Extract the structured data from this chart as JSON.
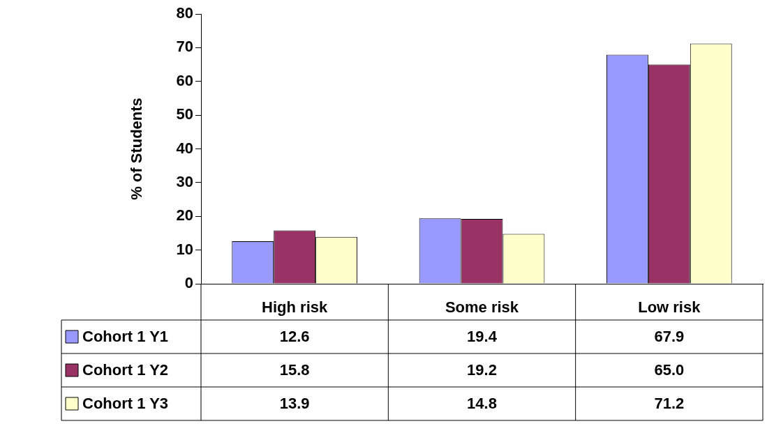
{
  "chart_data": {
    "type": "bar",
    "ylabel": "% of Students",
    "categories": [
      "High risk",
      "Some risk",
      "Low risk"
    ],
    "series": [
      {
        "name": "Cohort 1 Y1",
        "color": "#9999ff",
        "values": [
          12.6,
          19.4,
          67.9
        ],
        "value_labels": [
          "12.6",
          "19.4",
          "67.9"
        ]
      },
      {
        "name": "Cohort 1 Y2",
        "color": "#993366",
        "values": [
          15.8,
          19.2,
          65.0
        ],
        "value_labels": [
          "15.8",
          "19.2",
          "65.0"
        ]
      },
      {
        "name": "Cohort 1 Y3",
        "color": "#ffffcc",
        "values": [
          13.9,
          14.8,
          71.2
        ],
        "value_labels": [
          "13.9",
          "14.8",
          "71.2"
        ]
      }
    ],
    "ylim": [
      0,
      80
    ],
    "yticks": [
      0,
      10,
      20,
      30,
      40,
      50,
      60,
      70,
      80
    ],
    "grid": false,
    "legend": "bottom"
  }
}
